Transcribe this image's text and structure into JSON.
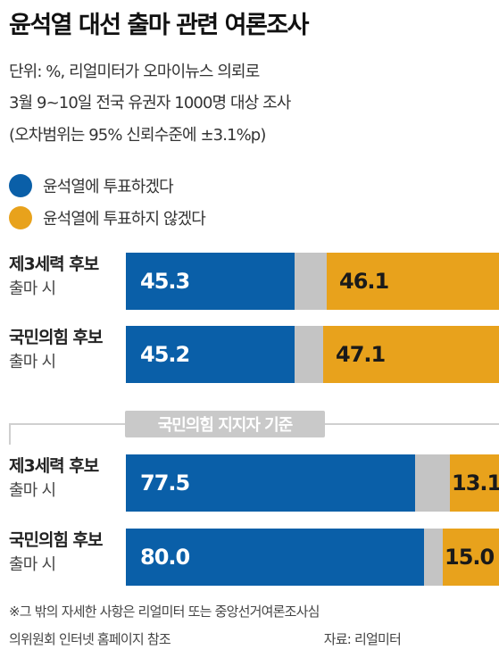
{
  "header": {
    "title": "윤석열 대선 출마 관련 여론조사",
    "subtitle_lines": [
      "단위: %, 리얼미터가 오마이뉴스 의뢰로",
      "3월 9~10일 전국 유권자 1000명 대상 조사",
      "(오차범위는 95% 신뢰수준에 ±3.1%p)"
    ]
  },
  "legend": [
    {
      "label": "윤석열에 투표하겠다",
      "color": "#0a5fa8"
    },
    {
      "label": "윤석열에 투표하지 않겠다",
      "color": "#e8a21c"
    }
  ],
  "colors": {
    "yes": "#0a5fa8",
    "no": "#e8a21c",
    "other": "#c4c4c4"
  },
  "chart_data": {
    "type": "bar",
    "stacked": true,
    "orientation": "horizontal",
    "unit": "%",
    "xlim": [
      0,
      100
    ],
    "section_label": "국민의힘 지지자 기준",
    "groups": [
      {
        "section": "",
        "rows": [
          {
            "label": "제3세력 후보",
            "sublabel": "출마 시",
            "yes": 45.3,
            "no": 46.1,
            "yes_text": "45.3",
            "no_text": "46.1"
          },
          {
            "label": "국민의힘 후보",
            "sublabel": "출마 시",
            "yes": 45.2,
            "no": 47.1,
            "yes_text": "45.2",
            "no_text": "47.1"
          }
        ]
      },
      {
        "section": "국민의힘 지지자 기준",
        "rows": [
          {
            "label": "제3세력 후보",
            "sublabel": "출마 시",
            "yes": 77.5,
            "no": 13.1,
            "yes_text": "77.5",
            "no_text": "13.1"
          },
          {
            "label": "국민의힘 후보",
            "sublabel": "출마 시",
            "yes": 80.0,
            "no": 15.0,
            "yes_text": "80.0",
            "no_text": "15.0"
          }
        ]
      }
    ]
  },
  "footer": {
    "note_lines": [
      "※그 밖의 자세한 사항은 리얼미터 또는 중앙선거여론조사심",
      "의위원회 인터넷 홈페이지 참조"
    ],
    "source": "자료: 리얼미터"
  }
}
